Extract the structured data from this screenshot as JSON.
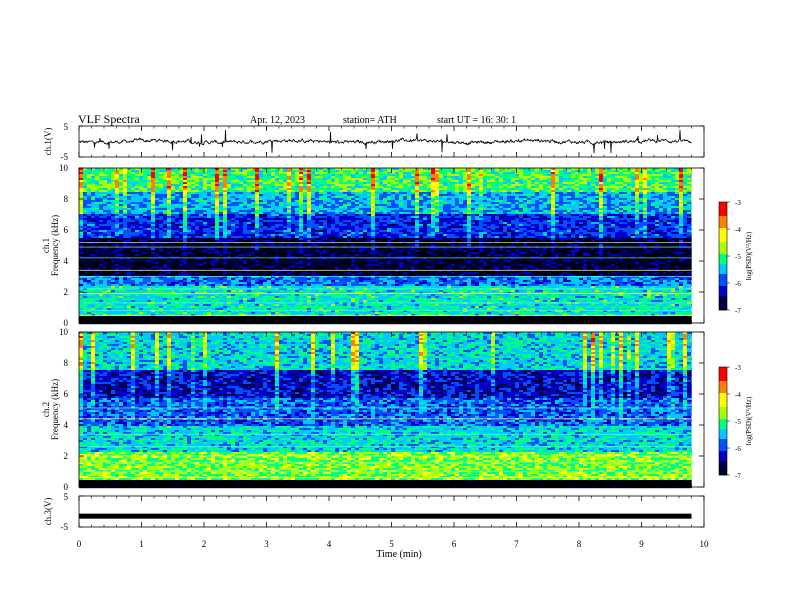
{
  "header": {
    "title": "VLF  Spectra",
    "date": "Apr. 12, 2023",
    "station": "station= ATH",
    "start": "start  UT  =   16: 30: 1"
  },
  "colors": {
    "background": "#ffffff",
    "axis": "#000000",
    "colormap": [
      "#000000",
      "#00004a",
      "#0000c8",
      "#0050ff",
      "#00c8ff",
      "#00ff80",
      "#aaff00",
      "#ffff00",
      "#ff8000",
      "#ff0000",
      "#ffffff"
    ]
  },
  "chart_data": [
    {
      "type": "line",
      "panel": "ch1-waveform",
      "ylabel": "ch.1(V)",
      "ylim": [
        -5,
        5
      ],
      "yticks": [
        "5",
        "-5"
      ],
      "x_range_min": [
        0,
        9.8
      ],
      "level_v": 0,
      "amplitude_v": 1.5
    },
    {
      "type": "heatmap",
      "panel": "ch1-spectrogram",
      "ylabel": "ch.1\nFrequency  (kHz)",
      "ylim_khz": [
        0,
        10
      ],
      "yticks": [
        "0",
        "2",
        "4",
        "6",
        "8",
        "10"
      ],
      "x_range_min": [
        0,
        9.8
      ],
      "colorbar": {
        "label": "log(PSD)(V²/Hz)",
        "range": [
          -7,
          -3
        ],
        "ticks": [
          "-3",
          "-4",
          "-5",
          "-6",
          "-7"
        ]
      },
      "bands": [
        {
          "from_khz": 0,
          "to_khz": 0.4,
          "log_psd": -7,
          "note": "dark floor"
        },
        {
          "from_khz": 0.4,
          "to_khz": 2.4,
          "log_psd": -5.3
        },
        {
          "from_khz": 2.4,
          "to_khz": 3.0,
          "log_psd": -5.8
        },
        {
          "from_khz": 3.0,
          "to_khz": 5.5,
          "log_psd": -6.8
        },
        {
          "from_khz": 5.5,
          "to_khz": 7.0,
          "log_psd": -6.1
        },
        {
          "from_khz": 7.0,
          "to_khz": 8.5,
          "log_psd": -5.6
        },
        {
          "from_khz": 8.5,
          "to_khz": 10,
          "log_psd": -5.0
        }
      ],
      "tone_lines_khz": [
        0.5,
        0.8,
        1.3,
        1.9,
        2.2,
        3.0,
        3.4,
        4.2,
        4.9,
        5.2
      ]
    },
    {
      "type": "heatmap",
      "panel": "ch2-spectrogram",
      "ylabel": "ch.2\nFrequency  (kHz)",
      "ylim_khz": [
        0,
        10
      ],
      "yticks": [
        "0",
        "2",
        "4",
        "6",
        "8",
        "10"
      ],
      "x_range_min": [
        0,
        9.8
      ],
      "colorbar": {
        "label": "log(PSD)(V²/Hz)",
        "range": [
          -7,
          -3
        ],
        "ticks": [
          "-3",
          "-4",
          "-5",
          "-6",
          "-7"
        ]
      },
      "bands": [
        {
          "from_khz": 0,
          "to_khz": 0.4,
          "log_psd": -7,
          "note": "dark floor"
        },
        {
          "from_khz": 0.4,
          "to_khz": 2.2,
          "log_psd": -4.8
        },
        {
          "from_khz": 2.2,
          "to_khz": 4.0,
          "log_psd": -5.4
        },
        {
          "from_khz": 4.0,
          "to_khz": 5.8,
          "log_psd": -5.9
        },
        {
          "from_khz": 5.8,
          "to_khz": 7.5,
          "log_psd": -6.3
        },
        {
          "from_khz": 7.5,
          "to_khz": 10,
          "log_psd": -5.4
        }
      ],
      "tone_lines_khz": [
        0.6,
        1.0,
        1.6,
        2.0,
        2.6,
        3.4,
        4.4,
        5.1
      ]
    },
    {
      "type": "line",
      "panel": "ch3-waveform",
      "ylabel": "ch.3(V)",
      "ylim": [
        -5,
        5
      ],
      "yticks": [
        "5",
        "-5"
      ],
      "x_range_min": [
        0,
        9.8
      ],
      "level_v": -1.5,
      "amplitude_v": 0.05
    }
  ],
  "xaxis": {
    "label": "Time  (min)",
    "ticks": [
      "0",
      "1",
      "2",
      "3",
      "4",
      "5",
      "6",
      "7",
      "8",
      "9",
      "10"
    ],
    "range_min": [
      0,
      10
    ]
  }
}
